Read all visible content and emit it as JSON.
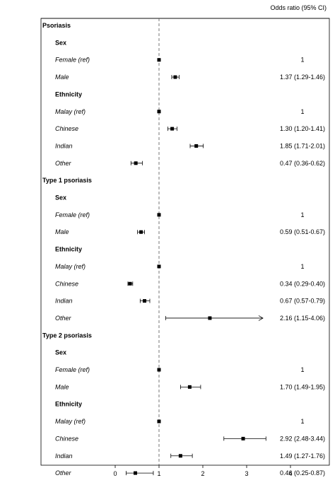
{
  "chart_data": {
    "type": "forest",
    "column_header": "Odds ratio (95% CI)",
    "x_ticks": [
      0,
      1,
      2,
      3,
      4
    ],
    "xlim": [
      -0.2,
      4.3
    ],
    "reference_line": 1,
    "grid": false,
    "rows": [
      {
        "label": "Psoriasis",
        "kind": "group"
      },
      {
        "label": "Sex",
        "kind": "subgroup"
      },
      {
        "label": "Female (ref)",
        "kind": "item",
        "or": 1,
        "lo": null,
        "hi": null,
        "text": "1"
      },
      {
        "label": "Male",
        "kind": "item",
        "or": 1.37,
        "lo": 1.29,
        "hi": 1.46,
        "text": "1.37 (1.29-1.46)"
      },
      {
        "label": "Ethnicity",
        "kind": "subgroup"
      },
      {
        "label": "Malay (ref)",
        "kind": "item",
        "or": 1,
        "lo": null,
        "hi": null,
        "text": "1"
      },
      {
        "label": "Chinese",
        "kind": "item",
        "or": 1.3,
        "lo": 1.2,
        "hi": 1.41,
        "text": "1.30 (1.20-1.41)"
      },
      {
        "label": "Indian",
        "kind": "item",
        "or": 1.85,
        "lo": 1.71,
        "hi": 2.01,
        "text": "1.85 (1.71-2.01)"
      },
      {
        "label": "Other",
        "kind": "item",
        "or": 0.47,
        "lo": 0.36,
        "hi": 0.62,
        "text": "0.47 (0.36-0.62)"
      },
      {
        "label": "Type 1 psoriasis",
        "kind": "group"
      },
      {
        "label": "Sex",
        "kind": "subgroup"
      },
      {
        "label": "Female (ref)",
        "kind": "item",
        "or": 1,
        "lo": null,
        "hi": null,
        "text": "1"
      },
      {
        "label": "Male",
        "kind": "item",
        "or": 0.59,
        "lo": 0.51,
        "hi": 0.67,
        "text": "0.59 (0.51-0.67)"
      },
      {
        "label": "Ethnicity",
        "kind": "subgroup"
      },
      {
        "label": "Malay (ref)",
        "kind": "item",
        "or": 1,
        "lo": null,
        "hi": null,
        "text": "1"
      },
      {
        "label": "Chinese",
        "kind": "item",
        "or": 0.34,
        "lo": 0.29,
        "hi": 0.4,
        "text": "0.34 (0.29-0.40)"
      },
      {
        "label": "Indian",
        "kind": "item",
        "or": 0.67,
        "lo": 0.57,
        "hi": 0.79,
        "text": "0.67 (0.57-0.79)"
      },
      {
        "label": "Other",
        "kind": "item",
        "or": 2.16,
        "lo": 1.15,
        "hi": 4.06,
        "text": "2.16 (1.15-4.06)",
        "arrow_right": true
      },
      {
        "label": "Type 2 psoriasis",
        "kind": "group"
      },
      {
        "label": "Sex",
        "kind": "subgroup"
      },
      {
        "label": "Female (ref)",
        "kind": "item",
        "or": 1,
        "lo": null,
        "hi": null,
        "text": "1"
      },
      {
        "label": "Male",
        "kind": "item",
        "or": 1.7,
        "lo": 1.49,
        "hi": 1.95,
        "text": "1.70 (1.49-1.95)"
      },
      {
        "label": "Ethnicity",
        "kind": "subgroup"
      },
      {
        "label": "Malay (ref)",
        "kind": "item",
        "or": 1,
        "lo": null,
        "hi": null,
        "text": "1"
      },
      {
        "label": "Chinese",
        "kind": "item",
        "or": 2.92,
        "lo": 2.48,
        "hi": 3.44,
        "text": "2.92 (2.48-3.44)"
      },
      {
        "label": "Indian",
        "kind": "item",
        "or": 1.49,
        "lo": 1.27,
        "hi": 1.76,
        "text": "1.49 (1.27-1.76)"
      },
      {
        "label": "Other",
        "kind": "item",
        "or": 0.46,
        "lo": 0.25,
        "hi": 0.87,
        "text": "0.46 (0.25-0.87)"
      }
    ]
  }
}
